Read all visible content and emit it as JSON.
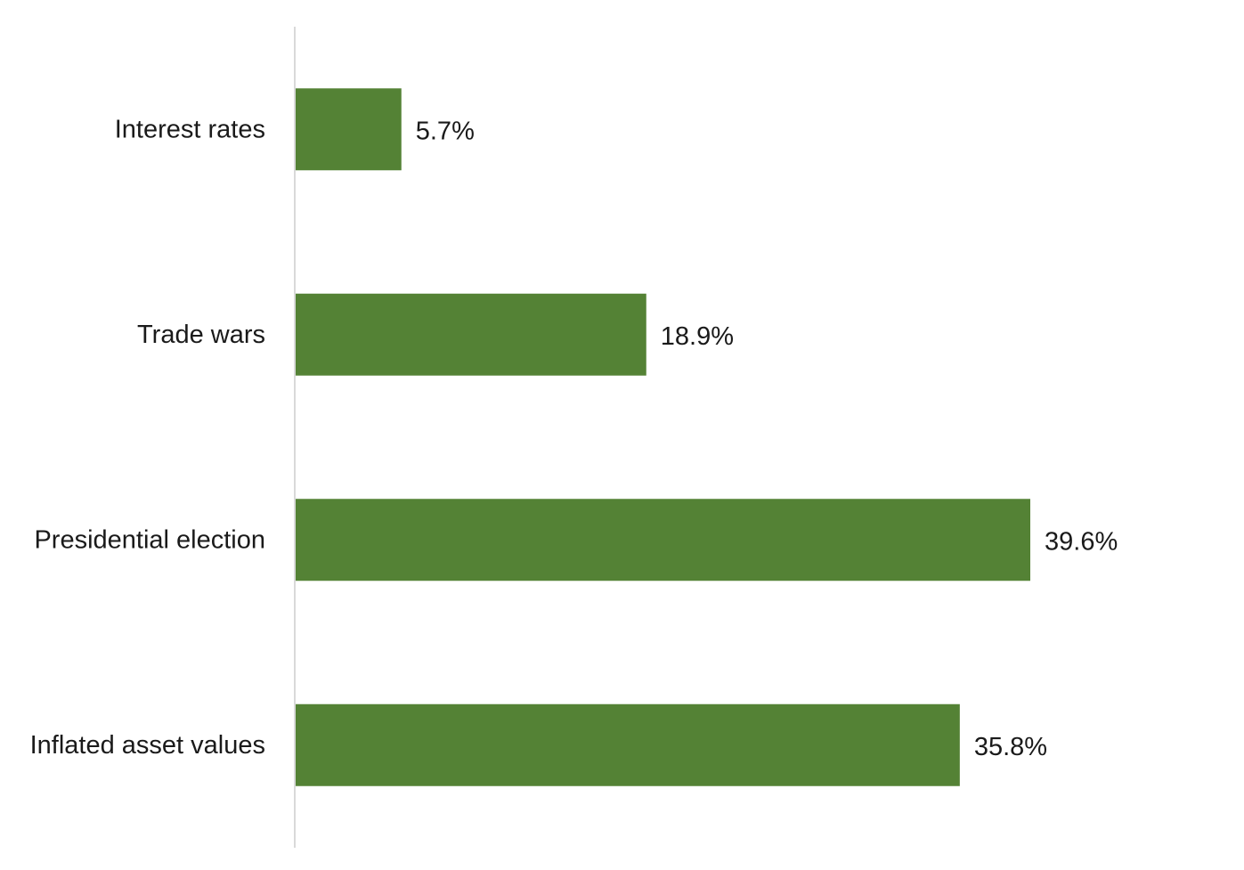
{
  "chart_data": {
    "type": "bar",
    "orientation": "horizontal",
    "categories": [
      "Interest rates",
      "Trade wars",
      "Presidential election",
      "Inflated asset values"
    ],
    "values": [
      5.7,
      18.9,
      39.6,
      35.8
    ],
    "value_labels": [
      "5.7%",
      "18.9%",
      "39.6%",
      "35.8%"
    ],
    "unit": "%",
    "xlim": [
      0,
      48
    ],
    "grid": false,
    "legend": "none",
    "bar_color": "#548235",
    "axis_color": "#d9d9d9"
  }
}
